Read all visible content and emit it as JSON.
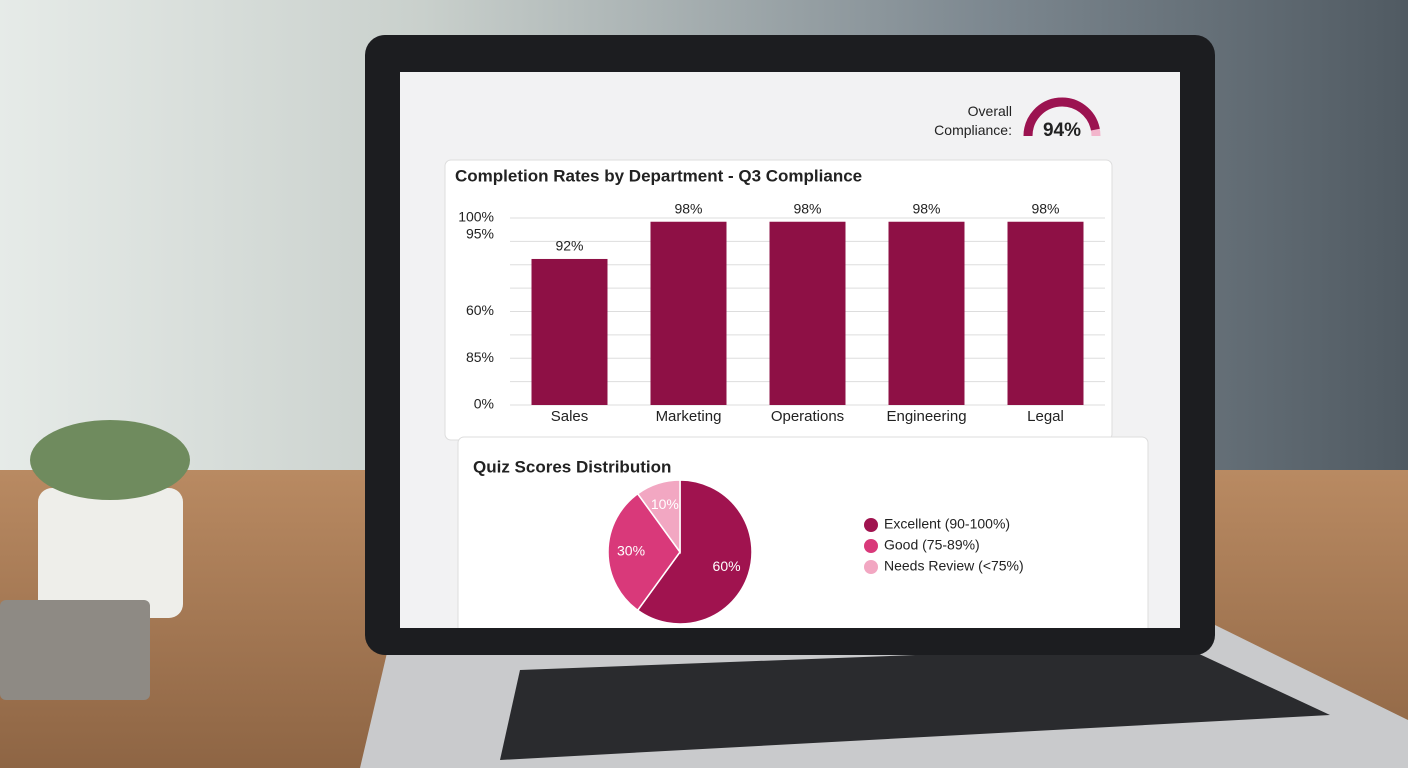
{
  "chart_data": [
    {
      "type": "gauge",
      "title": "Overall Compliance:",
      "value": 94,
      "value_label": "94%",
      "lim": [
        0,
        100
      ],
      "color": "#9b1350"
    },
    {
      "type": "bar",
      "title": "Completion Rates by Department - Q3 Compliance",
      "categories": [
        "Sales",
        "Marketing",
        "Operations",
        "Engineering",
        "Legal"
      ],
      "values": [
        92,
        98,
        98,
        98,
        98
      ],
      "value_labels": [
        "92%",
        "98%",
        "98%",
        "98%",
        "98%"
      ],
      "color": "#8e1045",
      "ylim": [
        0,
        100
      ],
      "y_axis_labels": [
        "100%",
        "95%",
        "60%",
        "85%",
        "0%"
      ],
      "grid": true
    },
    {
      "type": "pie",
      "title": "Quiz Scores Distribution",
      "categories": [
        "Excellent (90-100%)",
        "Good (75-89%)",
        "Needs Review (<75%)"
      ],
      "values": [
        60,
        30,
        10
      ],
      "value_labels": [
        "60%",
        "30%",
        "10%"
      ],
      "colors": [
        "#a0134f",
        "#d9397a",
        "#f2a7c2"
      ]
    }
  ]
}
